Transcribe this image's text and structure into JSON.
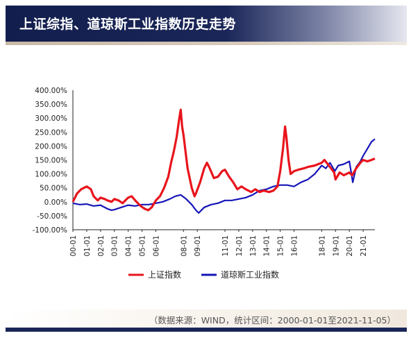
{
  "header": {
    "title": "上证综指、道琼斯工业指数历史走势"
  },
  "footer": {
    "source": "（数据来源：WIND，统计区间：2000-01-01至2021-11-05）"
  },
  "colors": {
    "header_bg": "#1a2658",
    "accent_rule": "#c9b9a6",
    "series_sse": "#e8141c",
    "series_dji": "#1515b8"
  },
  "chart_data": {
    "type": "line",
    "title": "",
    "xlabel": "",
    "ylabel": "",
    "ylim": [
      -100,
      400
    ],
    "yticks": [
      400,
      350,
      300,
      250,
      200,
      150,
      100,
      50,
      0,
      -50,
      -100
    ],
    "ytick_labels": [
      "400.00%",
      "350.00%",
      "300.00%",
      "250.00%",
      "200.00%",
      "150.00%",
      "100.00%",
      "50.00%",
      "0.00%",
      "-50.00%",
      "-100.00%"
    ],
    "xlim": [
      2000.0,
      2021.85
    ],
    "xtick_labels": [
      "00-01",
      "01-01",
      "02-01",
      "03-01",
      "04-01",
      "05-01",
      "06-01",
      "08-01",
      "09-01",
      "11-01",
      "12-01",
      "13-01",
      "14-01",
      "15-01",
      "16-01",
      "18-01",
      "19-01",
      "20-01",
      "21-01"
    ],
    "xtick_years": [
      2000,
      2001,
      2002,
      2003,
      2004,
      2005,
      2006,
      2008,
      2009,
      2011,
      2012,
      2013,
      2014,
      2015,
      2016,
      2018,
      2019,
      2020,
      2021
    ],
    "grid": false,
    "legend_position": "bottom-center",
    "series": [
      {
        "name": "上证指数",
        "x": [
          2000.0,
          2000.3,
          2000.6,
          2001.0,
          2001.3,
          2001.5,
          2001.8,
          2002.0,
          2002.3,
          2002.5,
          2002.8,
          2003.0,
          2003.3,
          2003.6,
          2004.0,
          2004.25,
          2004.6,
          2004.9,
          2005.2,
          2005.45,
          2005.7,
          2006.0,
          2006.3,
          2006.6,
          2006.9,
          2007.1,
          2007.3,
          2007.5,
          2007.7,
          2007.8,
          2007.9,
          2008.0,
          2008.3,
          2008.6,
          2008.8,
          2008.9,
          2009.2,
          2009.5,
          2009.7,
          2009.9,
          2010.2,
          2010.5,
          2010.8,
          2011.0,
          2011.3,
          2011.6,
          2011.9,
          2012.2,
          2012.5,
          2012.9,
          2013.2,
          2013.5,
          2013.8,
          2014.2,
          2014.5,
          2014.8,
          2015.0,
          2015.2,
          2015.35,
          2015.45,
          2015.6,
          2015.75,
          2016.0,
          2016.3,
          2016.7,
          2017.0,
          2017.5,
          2018.0,
          2018.2,
          2018.6,
          2018.9,
          2019.0,
          2019.3,
          2019.6,
          2020.0,
          2020.2,
          2020.5,
          2020.8,
          2021.0,
          2021.3,
          2021.6,
          2021.85
        ],
        "values": [
          0,
          30,
          45,
          55,
          45,
          20,
          5,
          15,
          10,
          5,
          0,
          10,
          5,
          -5,
          15,
          20,
          0,
          -15,
          -25,
          -30,
          -20,
          5,
          20,
          50,
          90,
          140,
          180,
          230,
          300,
          330,
          270,
          240,
          120,
          50,
          20,
          30,
          70,
          120,
          140,
          120,
          85,
          90,
          110,
          115,
          90,
          70,
          45,
          55,
          45,
          35,
          45,
          35,
          40,
          35,
          40,
          55,
          110,
          190,
          270,
          230,
          150,
          100,
          110,
          115,
          120,
          125,
          130,
          140,
          150,
          125,
          105,
          80,
          105,
          95,
          105,
          95,
          120,
          140,
          150,
          145,
          150,
          155
        ]
      },
      {
        "name": "道琼斯工业指数",
        "x": [
          2000.0,
          2000.5,
          2001.0,
          2001.5,
          2002.0,
          2002.5,
          2002.8,
          2003.0,
          2003.5,
          2004.0,
          2004.5,
          2005.0,
          2005.5,
          2006.0,
          2006.5,
          2007.0,
          2007.4,
          2007.8,
          2008.2,
          2008.6,
          2008.9,
          2009.1,
          2009.5,
          2010.0,
          2010.5,
          2011.0,
          2011.5,
          2012.0,
          2012.5,
          2013.0,
          2013.5,
          2014.0,
          2014.5,
          2015.0,
          2015.5,
          2016.0,
          2016.5,
          2017.0,
          2017.5,
          2018.0,
          2018.3,
          2018.6,
          2018.95,
          2019.2,
          2019.6,
          2020.0,
          2020.15,
          2020.25,
          2020.5,
          2020.8,
          2021.0,
          2021.3,
          2021.6,
          2021.85
        ],
        "values": [
          -5,
          -10,
          -8,
          -15,
          -12,
          -25,
          -30,
          -28,
          -20,
          -12,
          -15,
          -10,
          -10,
          -5,
          0,
          10,
          20,
          25,
          10,
          -10,
          -30,
          -40,
          -20,
          -10,
          -5,
          5,
          5,
          10,
          15,
          25,
          40,
          45,
          55,
          60,
          60,
          55,
          70,
          80,
          100,
          130,
          120,
          140,
          110,
          130,
          135,
          145,
          100,
          70,
          125,
          145,
          165,
          190,
          215,
          225
        ]
      }
    ]
  }
}
